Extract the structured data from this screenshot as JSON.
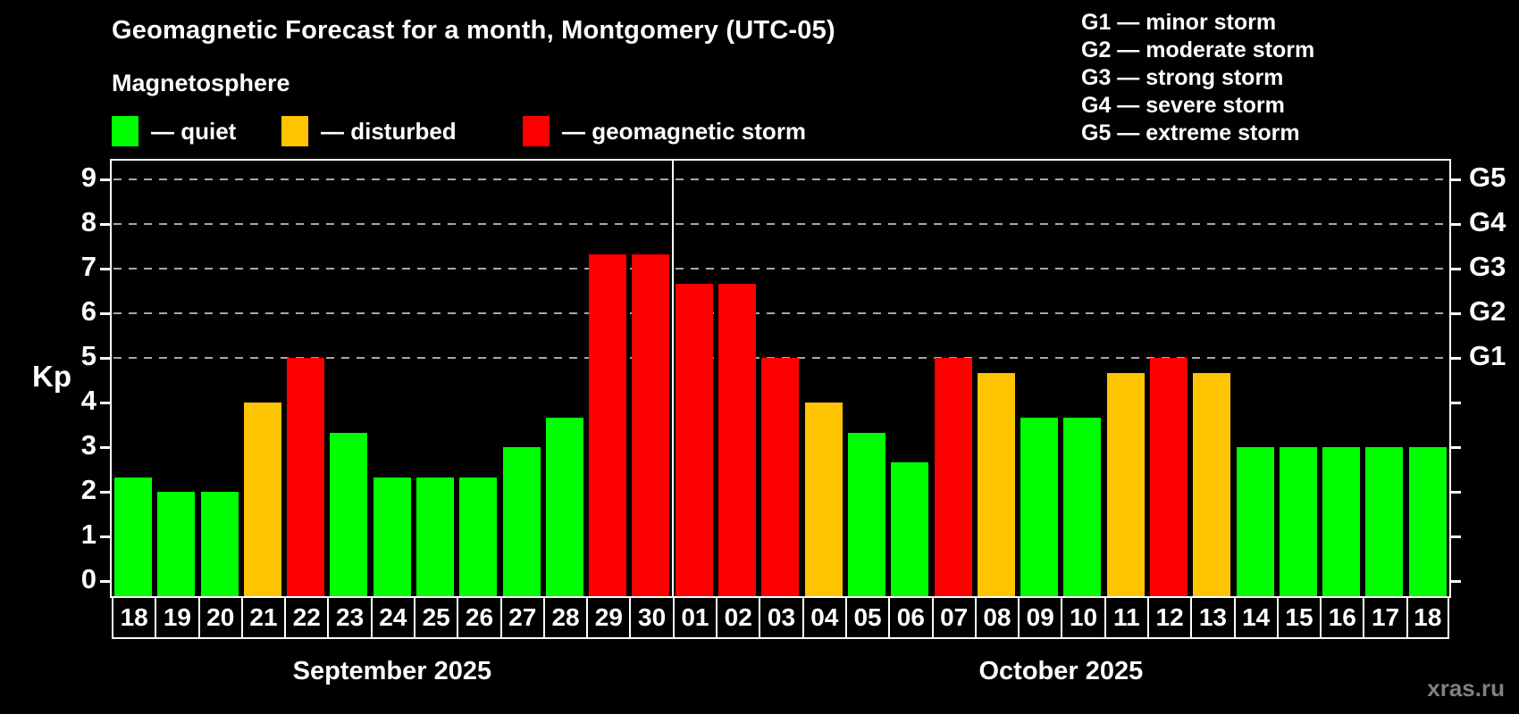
{
  "title": "Geomagnetic Forecast for a month, Montgomery (UTC-05)",
  "subtitle": "Magnetosphere",
  "legend": {
    "items": [
      {
        "key": "quiet",
        "label": "— quiet"
      },
      {
        "key": "disturbed",
        "label": "— disturbed"
      },
      {
        "key": "storm",
        "label": "— geomagnetic storm"
      }
    ]
  },
  "g_scale_legend": [
    "G1 — minor storm",
    "G2 — moderate storm",
    "G3 — strong storm",
    "G4 — severe storm",
    "G5 — extreme storm"
  ],
  "watermark": "xras.ru",
  "colors": {
    "quiet": "#00ff00",
    "disturbed": "#ffc400",
    "storm": "#ff0000",
    "background": "#000000",
    "grid": "#a8a8a8",
    "axis": "#ffffff",
    "watermark": "#808080"
  },
  "chart_data": {
    "type": "bar",
    "title": "Geomagnetic Forecast for a month, Montgomery (UTC-05)",
    "ylabel": "Kp",
    "ylim": [
      0,
      9
    ],
    "grid": "dashed horizontal at Kp 5-9 only",
    "legend_position": "top-left",
    "y_ticks": [
      0,
      1,
      2,
      3,
      4,
      5,
      6,
      7,
      8,
      9
    ],
    "gridlines_at": [
      5,
      6,
      7,
      8,
      9
    ],
    "right_axis_labels": [
      {
        "kp": 5,
        "label": "G1"
      },
      {
        "kp": 6,
        "label": "G2"
      },
      {
        "kp": 7,
        "label": "G3"
      },
      {
        "kp": 8,
        "label": "G4"
      },
      {
        "kp": 9,
        "label": "G5"
      }
    ],
    "months": [
      {
        "label": "September 2025",
        "days": 13
      },
      {
        "label": "October 2025",
        "days": 18
      }
    ],
    "series": [
      {
        "month": "September 2025",
        "date": "18",
        "value": 2.33,
        "status": "quiet"
      },
      {
        "month": "September 2025",
        "date": "19",
        "value": 2.0,
        "status": "quiet"
      },
      {
        "month": "September 2025",
        "date": "20",
        "value": 2.0,
        "status": "quiet"
      },
      {
        "month": "September 2025",
        "date": "21",
        "value": 4.0,
        "status": "disturbed"
      },
      {
        "month": "September 2025",
        "date": "22",
        "value": 5.0,
        "status": "storm"
      },
      {
        "month": "September 2025",
        "date": "23",
        "value": 3.33,
        "status": "quiet"
      },
      {
        "month": "September 2025",
        "date": "24",
        "value": 2.33,
        "status": "quiet"
      },
      {
        "month": "September 2025",
        "date": "25",
        "value": 2.33,
        "status": "quiet"
      },
      {
        "month": "September 2025",
        "date": "26",
        "value": 2.33,
        "status": "quiet"
      },
      {
        "month": "September 2025",
        "date": "27",
        "value": 3.0,
        "status": "quiet"
      },
      {
        "month": "September 2025",
        "date": "28",
        "value": 3.67,
        "status": "quiet"
      },
      {
        "month": "September 2025",
        "date": "29",
        "value": 7.33,
        "status": "storm"
      },
      {
        "month": "September 2025",
        "date": "30",
        "value": 7.33,
        "status": "storm"
      },
      {
        "month": "October 2025",
        "date": "01",
        "value": 6.67,
        "status": "storm"
      },
      {
        "month": "October 2025",
        "date": "02",
        "value": 6.67,
        "status": "storm"
      },
      {
        "month": "October 2025",
        "date": "03",
        "value": 5.0,
        "status": "storm"
      },
      {
        "month": "October 2025",
        "date": "04",
        "value": 4.0,
        "status": "disturbed"
      },
      {
        "month": "October 2025",
        "date": "05",
        "value": 3.33,
        "status": "quiet"
      },
      {
        "month": "October 2025",
        "date": "06",
        "value": 2.67,
        "status": "quiet"
      },
      {
        "month": "October 2025",
        "date": "07",
        "value": 5.0,
        "status": "storm"
      },
      {
        "month": "October 2025",
        "date": "08",
        "value": 4.67,
        "status": "disturbed"
      },
      {
        "month": "October 2025",
        "date": "09",
        "value": 3.67,
        "status": "quiet"
      },
      {
        "month": "October 2025",
        "date": "10",
        "value": 3.67,
        "status": "quiet"
      },
      {
        "month": "October 2025",
        "date": "11",
        "value": 4.67,
        "status": "disturbed"
      },
      {
        "month": "October 2025",
        "date": "12",
        "value": 5.0,
        "status": "storm"
      },
      {
        "month": "October 2025",
        "date": "13",
        "value": 4.67,
        "status": "disturbed"
      },
      {
        "month": "October 2025",
        "date": "14",
        "value": 3.0,
        "status": "quiet"
      },
      {
        "month": "October 2025",
        "date": "15",
        "value": 3.0,
        "status": "quiet"
      },
      {
        "month": "October 2025",
        "date": "16",
        "value": 3.0,
        "status": "quiet"
      },
      {
        "month": "October 2025",
        "date": "17",
        "value": 3.0,
        "status": "quiet"
      },
      {
        "month": "October 2025",
        "date": "18",
        "value": 3.0,
        "status": "quiet"
      }
    ]
  }
}
